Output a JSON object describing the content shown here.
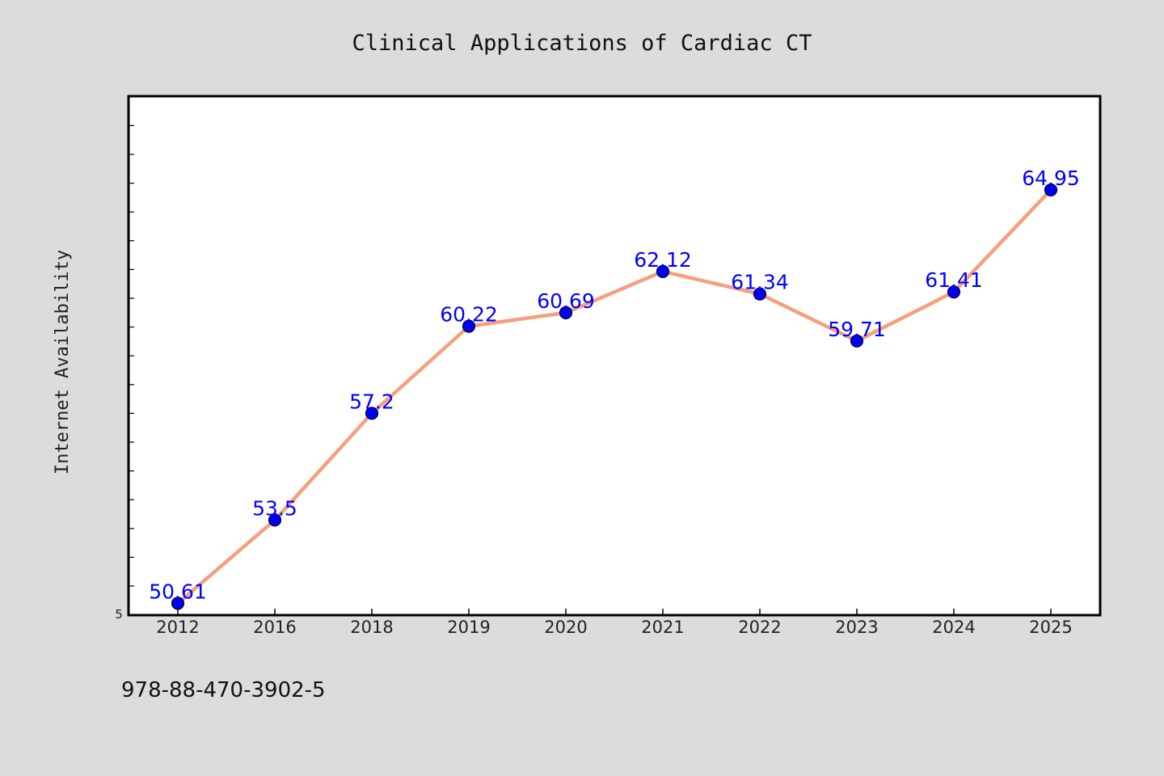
{
  "chart_data": {
    "type": "line",
    "title": "Clinical Applications of Cardiac CT",
    "xlabel": "",
    "ylabel": "Internet Availability",
    "categories": [
      "2012",
      "2016",
      "2018",
      "2019",
      "2020",
      "2021",
      "2022",
      "2023",
      "2024",
      "2025"
    ],
    "series": [
      {
        "values": [
          50.61,
          53.5,
          57.2,
          60.22,
          60.69,
          62.12,
          61.34,
          59.71,
          61.41,
          64.95
        ],
        "labels": [
          "50.61",
          "53.5",
          "57.2",
          "60.22",
          "60.69",
          "62.12",
          "61.34",
          "59.71",
          "61.41",
          "64.95"
        ]
      }
    ],
    "ylim": [
      50.2,
      68.2
    ],
    "y_tick_label": "5",
    "grid": false,
    "legend": "none",
    "colors": {
      "line": "#f4a07c",
      "marker": "#0000ee",
      "label": "#0000ff",
      "plot_bg": "#ffffff",
      "frame": "#000000",
      "page_bg": "#dcdcdc"
    }
  },
  "footer": {
    "isbn": "978-88-470-3902-5"
  }
}
